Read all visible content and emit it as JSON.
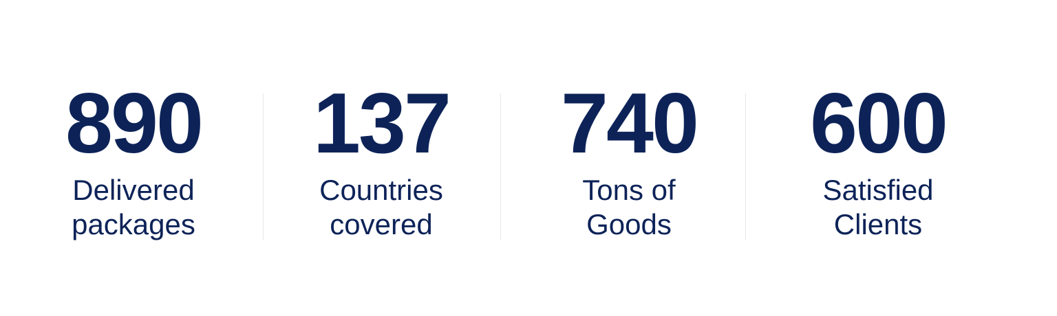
{
  "colors": {
    "text": "#0d2358",
    "divider": "#e6e6e6",
    "background": "#ffffff"
  },
  "stats": [
    {
      "value": "890",
      "label": "Delivered\npackages"
    },
    {
      "value": "137",
      "label": "Countries\ncovered"
    },
    {
      "value": "740",
      "label": "Tons of\nGoods"
    },
    {
      "value": "600",
      "label": "Satisfied\nClients"
    }
  ]
}
